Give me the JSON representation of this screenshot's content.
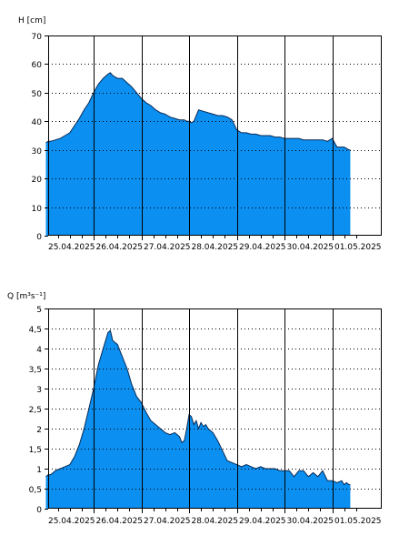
{
  "chart_data": [
    {
      "type": "area",
      "id": "level",
      "ylabel": "H [cm]",
      "xlabel": "",
      "title": "",
      "ylim": [
        0,
        70
      ],
      "yticks": [
        0,
        10,
        20,
        30,
        40,
        50,
        60,
        70
      ],
      "ytick_labels": [
        "0",
        "10",
        "20",
        "30",
        "40",
        "50",
        "60",
        "70"
      ],
      "xticks": [
        "25.04.2025",
        "26.04.2025",
        "27.04.2025",
        "28.04.2025",
        "29.04.2025",
        "30.04.2025",
        "01.05.2025"
      ],
      "x_unit": "days since 25.04.2025 00:00",
      "xlim": [
        0,
        6.6
      ],
      "grid": true,
      "fill_color": "#0b8ff0",
      "series": [
        {
          "x": [
            0.0,
            0.05,
            0.1,
            0.2,
            0.3,
            0.35,
            0.4,
            0.5,
            0.6,
            0.7,
            0.8,
            0.9,
            1.0,
            1.05,
            1.1,
            1.2,
            1.3,
            1.35,
            1.4,
            1.5,
            1.6,
            1.7,
            1.8,
            1.9,
            2.0,
            2.1,
            2.2,
            2.3,
            2.4,
            2.5,
            2.55,
            2.6,
            2.7,
            2.8,
            2.9,
            2.95,
            3.0,
            3.05,
            3.1,
            3.2,
            3.3,
            3.4,
            3.5,
            3.6,
            3.7,
            3.8,
            3.85,
            3.9,
            4.0,
            4.1,
            4.2,
            4.3,
            4.4,
            4.5,
            4.6,
            4.7,
            4.8,
            4.9,
            5.0,
            5.1,
            5.2,
            5.3,
            5.4,
            5.5,
            5.6,
            5.7,
            5.8,
            5.9,
            6.0,
            6.1,
            6.2,
            6.25,
            6.3,
            6.35,
            6.38
          ],
          "y": [
            32.5,
            33,
            33,
            33.5,
            34,
            34.5,
            35,
            36,
            38.5,
            41,
            44,
            46.5,
            50,
            51.5,
            53,
            55,
            56.5,
            57,
            56,
            55,
            55,
            53.5,
            52,
            50,
            48,
            46.5,
            45.5,
            44,
            43,
            42.5,
            42,
            41.5,
            41,
            40.5,
            40.5,
            40,
            40,
            39.5,
            40,
            44,
            43.5,
            43,
            42.5,
            42,
            42,
            41.5,
            41,
            40.5,
            37,
            36,
            36,
            35.5,
            35.5,
            35,
            35,
            35,
            34.5,
            34.5,
            34,
            34,
            34,
            34,
            33.5,
            33.5,
            33.5,
            33.5,
            33.5,
            33,
            34,
            31,
            31,
            31,
            30.5,
            30,
            30
          ]
        }
      ]
    },
    {
      "type": "area",
      "id": "discharge",
      "ylabel": "Q [m³s⁻¹]",
      "xlabel": "",
      "title": "",
      "ylim": [
        0,
        5
      ],
      "yticks": [
        0,
        0.5,
        1,
        1.5,
        2,
        2.5,
        3,
        3.5,
        4,
        4.5,
        5
      ],
      "ytick_labels": [
        "0",
        "0,5",
        "1",
        "1,5",
        "2",
        "2,5",
        "3",
        "3,5",
        "4",
        "4,5",
        "5"
      ],
      "xticks": [
        "25.04.2025",
        "26.04.2025",
        "27.04.2025",
        "28.04.2025",
        "29.04.2025",
        "30.04.2025",
        "01.05.2025"
      ],
      "x_unit": "days since 25.04.2025 00:00",
      "xlim": [
        0,
        6.6
      ],
      "grid": true,
      "fill_color": "#0b8ff0",
      "series": [
        {
          "x": [
            0.0,
            0.05,
            0.1,
            0.2,
            0.3,
            0.4,
            0.5,
            0.6,
            0.7,
            0.8,
            0.9,
            1.0,
            1.05,
            1.1,
            1.2,
            1.3,
            1.35,
            1.4,
            1.5,
            1.6,
            1.7,
            1.8,
            1.9,
            2.0,
            2.1,
            2.2,
            2.3,
            2.4,
            2.5,
            2.6,
            2.7,
            2.8,
            2.85,
            2.9,
            2.95,
            3.0,
            3.05,
            3.1,
            3.15,
            3.2,
            3.25,
            3.3,
            3.35,
            3.4,
            3.45,
            3.5,
            3.6,
            3.7,
            3.8,
            3.9,
            4.0,
            4.1,
            4.2,
            4.3,
            4.4,
            4.5,
            4.6,
            4.7,
            4.8,
            4.9,
            5.0,
            5.1,
            5.2,
            5.3,
            5.4,
            5.5,
            5.6,
            5.7,
            5.8,
            5.9,
            6.0,
            6.1,
            6.2,
            6.25,
            6.3,
            6.35,
            6.38
          ],
          "y": [
            0.8,
            0.85,
            0.85,
            0.95,
            1.0,
            1.05,
            1.1,
            1.3,
            1.6,
            2.0,
            2.5,
            3.0,
            3.3,
            3.6,
            4.0,
            4.4,
            4.45,
            4.2,
            4.1,
            3.8,
            3.5,
            3.1,
            2.8,
            2.65,
            2.4,
            2.2,
            2.1,
            2.0,
            1.9,
            1.85,
            1.9,
            1.8,
            1.65,
            1.7,
            2.0,
            2.35,
            2.3,
            2.1,
            2.2,
            2.0,
            2.15,
            2.05,
            2.1,
            2.0,
            1.95,
            1.9,
            1.7,
            1.45,
            1.2,
            1.15,
            1.1,
            1.05,
            1.1,
            1.05,
            1.0,
            1.05,
            1.0,
            1.0,
            1.0,
            0.95,
            0.95,
            0.95,
            0.8,
            0.95,
            0.95,
            0.8,
            0.9,
            0.8,
            0.95,
            0.7,
            0.7,
            0.65,
            0.7,
            0.6,
            0.65,
            0.6,
            0.6
          ]
        }
      ]
    }
  ]
}
